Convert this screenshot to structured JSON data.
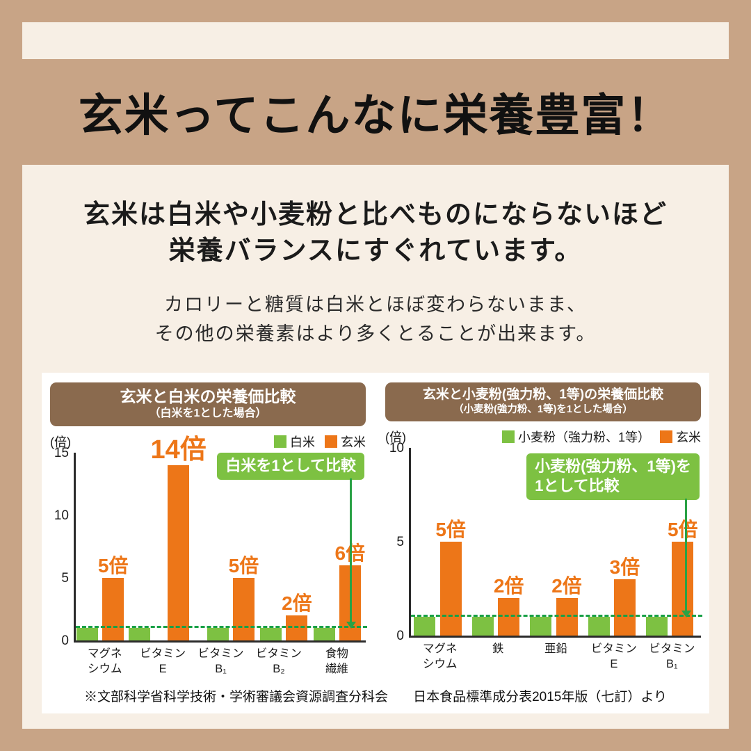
{
  "page": {
    "title": "玄米ってこんなに栄養豊富！",
    "lead": [
      "玄米は白米や小麦粉と比べものにならないほど",
      "栄養バランスにすぐれています。"
    ],
    "sub": [
      "カロリーと糖質は白米とほぼ変わらないまま、",
      "その他の栄養素はより多くとることが出来ます。"
    ],
    "citation_left": "※文部科学省科学技術・学術審議会資源調査分科会",
    "citation_right": "日本食品標準成分表2015年版（七訂）より"
  },
  "colors": {
    "frame_tan": "#c8a486",
    "background_cream": "#f7efe5",
    "chart_header_brown": "#8a6a4e",
    "brown_rice_orange": "#ed7618",
    "base_green": "#7dc142",
    "baseline_green": "#18a046",
    "panel_white": "#ffffff",
    "text_black": "#1b1b1b"
  },
  "chart_data": [
    {
      "type": "bar",
      "title": "玄米と白米の栄養価比較",
      "subtitle": "（白米を1とした場合）",
      "unit_label": "(倍)",
      "ylim": [
        0,
        15
      ],
      "yticks": [
        0,
        5,
        10,
        15
      ],
      "baseline": 1,
      "callout": [
        "白米を1として比較"
      ],
      "legend": [
        {
          "name": "白米",
          "color": "#7dc142"
        },
        {
          "name": "玄米",
          "color": "#ed7618"
        }
      ],
      "categories": [
        [
          "マグネ",
          "シウム"
        ],
        [
          "ビタミン",
          "E"
        ],
        [
          "ビタミン",
          "B₁"
        ],
        [
          "ビタミン",
          "B₂"
        ],
        [
          "食物",
          "繊維"
        ]
      ],
      "series": [
        {
          "name": "白米",
          "color": "#7dc142",
          "values": [
            1,
            1,
            1,
            1,
            1
          ]
        },
        {
          "name": "玄米",
          "color": "#ed7618",
          "values": [
            5,
            14,
            5,
            2,
            6
          ],
          "labels": [
            "5倍",
            "14倍",
            "5倍",
            "2倍",
            "6倍"
          ]
        }
      ]
    },
    {
      "type": "bar",
      "title": "玄米と小麦粉(強力粉、1等)の栄養価比較",
      "subtitle": "（小麦粉(強力粉、1等)を1とした場合）",
      "unit_label": "(倍)",
      "ylim": [
        0,
        10
      ],
      "yticks": [
        0,
        5,
        10
      ],
      "baseline": 1,
      "callout": [
        "小麦粉(強力粉、1等)を",
        "1として比較"
      ],
      "legend": [
        {
          "name": "小麦粉（強力粉、1等）",
          "color": "#7dc142"
        },
        {
          "name": "玄米",
          "color": "#ed7618"
        }
      ],
      "categories": [
        [
          "マグネ",
          "シウム"
        ],
        [
          "鉄"
        ],
        [
          "亜鉛"
        ],
        [
          "ビタミン",
          "E"
        ],
        [
          "ビタミン",
          "B₁"
        ]
      ],
      "series": [
        {
          "name": "小麦粉（強力粉、1等）",
          "color": "#7dc142",
          "values": [
            1,
            1,
            1,
            1,
            1
          ]
        },
        {
          "name": "玄米",
          "color": "#ed7618",
          "values": [
            5,
            2,
            2,
            3,
            5
          ],
          "labels": [
            "5倍",
            "2倍",
            "2倍",
            "3倍",
            "5倍"
          ]
        }
      ]
    }
  ]
}
